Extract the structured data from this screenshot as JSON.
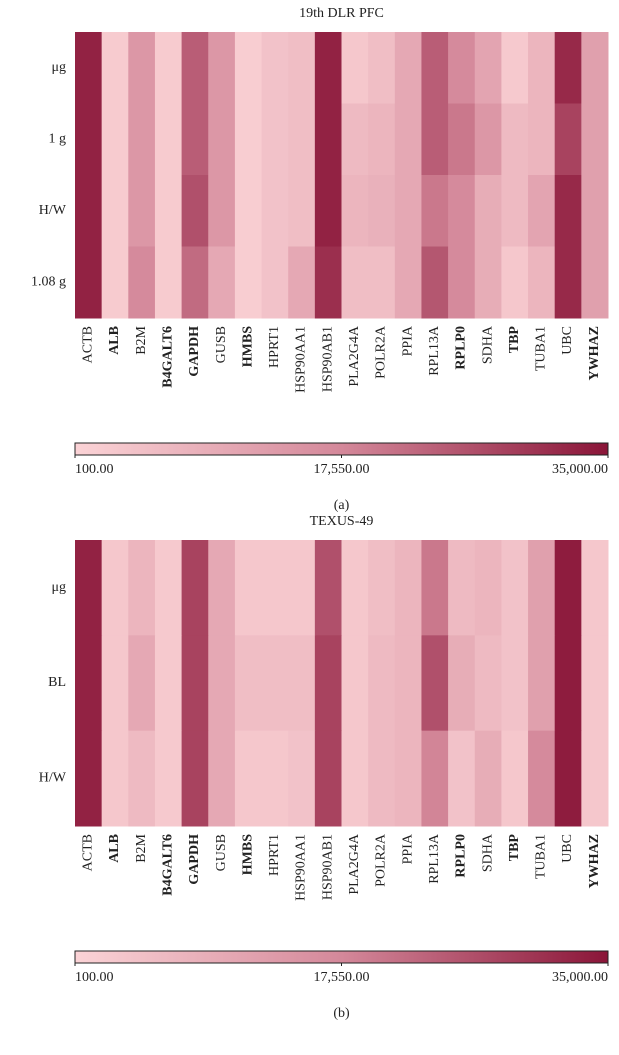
{
  "chart_data": [
    {
      "type": "heatmap",
      "title": "19th DLR PFC",
      "caption": "(a)",
      "rows": [
        "μg",
        "1 g",
        "H/W",
        "1.08 g"
      ],
      "categories": [
        "ACTB",
        "ALB",
        "B2M",
        "B4GALT6",
        "GAPDH",
        "GUSB",
        "HMBS",
        "HPRT1",
        "HSP90AA1",
        "HSP90AB1",
        "PLA2G4A",
        "POLR2A",
        "PPIA",
        "RPL13A",
        "RPLP0",
        "SDHA",
        "TBP",
        "TUBA1",
        "UBC",
        "YWHAZ"
      ],
      "bold": [
        false,
        true,
        false,
        true,
        true,
        false,
        true,
        false,
        false,
        false,
        false,
        false,
        false,
        false,
        true,
        false,
        true,
        false,
        false,
        true
      ],
      "values": [
        [
          33000,
          2000,
          14000,
          2000,
          24000,
          14000,
          1500,
          4000,
          5000,
          33000,
          3000,
          5000,
          10000,
          24000,
          17000,
          11000,
          2500,
          7000,
          32000,
          12000
        ],
        [
          33000,
          2000,
          14000,
          2000,
          24000,
          14000,
          1500,
          4000,
          5000,
          33000,
          6000,
          7000,
          10000,
          24000,
          20000,
          14000,
          6000,
          7000,
          28000,
          12000
        ],
        [
          33000,
          2000,
          14000,
          2000,
          26000,
          14000,
          1500,
          4000,
          5000,
          33000,
          7000,
          8000,
          10000,
          20000,
          17000,
          9000,
          6000,
          11000,
          32000,
          12000
        ],
        [
          33000,
          2000,
          17000,
          2000,
          22000,
          10000,
          1500,
          4000,
          10000,
          31000,
          5000,
          5000,
          10000,
          25000,
          17000,
          9000,
          3000,
          7000,
          32000,
          12000
        ]
      ],
      "clim": [
        100,
        35000
      ],
      "cticks": [
        {
          "value": 100,
          "label": "100.00"
        },
        {
          "value": 17550,
          "label": "17,550.00"
        },
        {
          "value": 35000,
          "label": "35,000.00"
        }
      ],
      "colorscale": [
        "#fbd3d6",
        "#d4889a",
        "#8a1538"
      ]
    },
    {
      "type": "heatmap",
      "title": "TEXUS-49",
      "caption": "(b)",
      "rows": [
        "μg",
        "BL",
        "H/W"
      ],
      "categories": [
        "ACTB",
        "ALB",
        "B2M",
        "B4GALT6",
        "GAPDH",
        "GUSB",
        "HMBS",
        "HPRT1",
        "HSP90AA1",
        "HSP90AB1",
        "PLA2G4A",
        "POLR2A",
        "PPIA",
        "RPL13A",
        "RPLP0",
        "SDHA",
        "TBP",
        "TUBA1",
        "UBC",
        "YWHAZ"
      ],
      "bold": [
        false,
        true,
        false,
        true,
        true,
        false,
        true,
        false,
        false,
        false,
        false,
        false,
        false,
        false,
        true,
        false,
        true,
        false,
        false,
        true
      ],
      "values": [
        [
          33000,
          3000,
          7000,
          2500,
          28000,
          10000,
          3000,
          3000,
          3000,
          26000,
          3000,
          5000,
          7000,
          20000,
          6000,
          7000,
          4000,
          12000,
          34000,
          3000
        ],
        [
          33000,
          3000,
          10000,
          2500,
          28000,
          10000,
          5000,
          5000,
          5000,
          28000,
          3000,
          6000,
          7000,
          26000,
          9000,
          6000,
          4000,
          12000,
          34000,
          3000
        ],
        [
          33000,
          3000,
          6000,
          2500,
          28000,
          10000,
          3000,
          3000,
          4000,
          28000,
          3000,
          6000,
          7000,
          18000,
          4000,
          9000,
          3000,
          17000,
          34000,
          3000
        ]
      ],
      "clim": [
        100,
        35000
      ],
      "cticks": [
        {
          "value": 100,
          "label": "100.00"
        },
        {
          "value": 17550,
          "label": "17,550.00"
        },
        {
          "value": 35000,
          "label": "35,000.00"
        }
      ],
      "colorscale": [
        "#fbd3d6",
        "#d4889a",
        "#8a1538"
      ]
    }
  ]
}
